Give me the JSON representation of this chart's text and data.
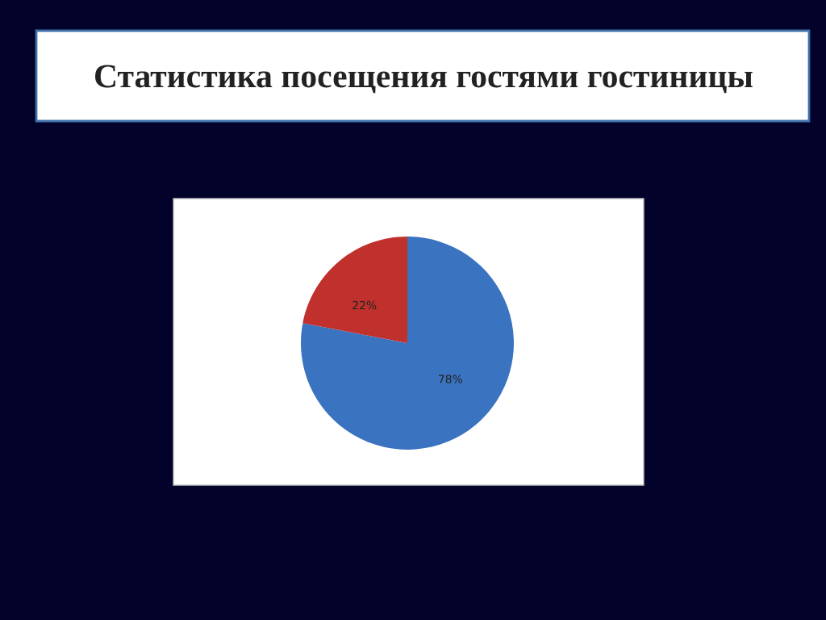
{
  "chart_data": {
    "type": "pie",
    "title": "Статистика посещения гостями гостиницы",
    "categories": [
      null,
      null
    ],
    "values": [
      78,
      22
    ],
    "colors": [
      "#3a73c0",
      "#c0302c"
    ],
    "value_labels": [
      "78%",
      "22%"
    ]
  }
}
